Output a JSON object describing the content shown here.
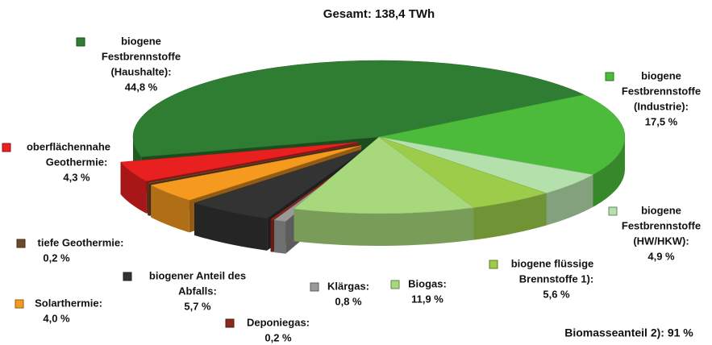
{
  "chart_data": {
    "type": "pie3d",
    "title": "Gesamt: 138,4 TWh",
    "annotation": "Biomasseanteil 2): 91 %",
    "categories": [
      [
        "biogene",
        "Festbrennstoffe",
        "(Haushalte):"
      ],
      [
        "biogene",
        "Festbrennstoffe",
        "(Industrie):"
      ],
      [
        "biogene",
        "Festbrennstoffe",
        "(HW/HKW):"
      ],
      [
        "biogene flüssige",
        "Brennstoffe 1):"
      ],
      [
        "Biogas:"
      ],
      [
        "Klärgas:"
      ],
      [
        "Deponiegas:"
      ],
      [
        "biogener Anteil des",
        "Abfalls:"
      ],
      [
        "Solarthermie:"
      ],
      [
        "tiefe Geothermie:"
      ],
      [
        "oberflächennahe",
        "Geothermie:"
      ]
    ],
    "values": [
      44.8,
      17.5,
      4.9,
      5.6,
      11.9,
      0.8,
      0.2,
      5.7,
      4.0,
      0.2,
      4.3
    ],
    "value_labels": [
      "44,8 %",
      "17,5 %",
      "4,9 %",
      "5,6 %",
      "11,9 %",
      "0,8 %",
      "0,2 %",
      "5,7 %",
      "4,0 %",
      "0,2 %",
      "4,3 %"
    ],
    "colors": [
      "#2f7d32",
      "#4cbb3c",
      "#b4e0ac",
      "#9ccc4a",
      "#a8d87c",
      "#9a9a9a",
      "#8b2a1a",
      "#333333",
      "#f59a1e",
      "#6b4a2a",
      "#e82020"
    ]
  }
}
